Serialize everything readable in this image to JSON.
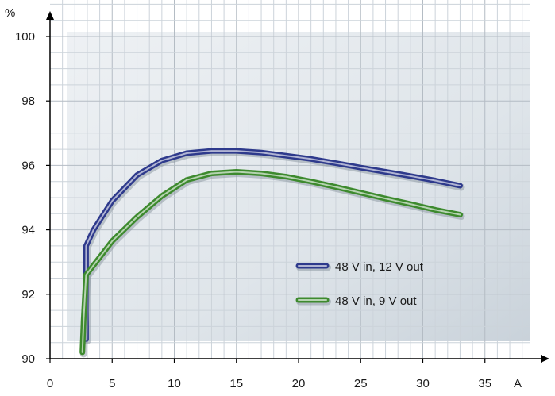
{
  "chart_data": {
    "type": "line",
    "xlabel": "A",
    "ylabel": "%",
    "xlim": [
      0,
      38.6
    ],
    "ylim": [
      90,
      101.3
    ],
    "xticks": [
      "0",
      "5",
      "10",
      "15",
      "20",
      "25",
      "30",
      "35"
    ],
    "yticks": [
      "90",
      "92",
      "94",
      "96",
      "98",
      "100"
    ],
    "grid": true,
    "legend_position": "center-right",
    "series": [
      {
        "name": "48 V in, 12 V out",
        "color": "#2e3a8c",
        "x": [
          2.9,
          2.9,
          3.5,
          5,
          7,
          9,
          11,
          13,
          15,
          17,
          19,
          21,
          23,
          25,
          27,
          29,
          31,
          33
        ],
        "y": [
          90.6,
          93.5,
          94.0,
          94.9,
          95.7,
          96.15,
          96.38,
          96.45,
          96.45,
          96.4,
          96.3,
          96.2,
          96.07,
          95.93,
          95.8,
          95.67,
          95.53,
          95.37
        ]
      },
      {
        "name": "48 V in, 9 V out",
        "color": "#3d8a2e",
        "x": [
          2.6,
          2.7,
          2.9,
          3.5,
          5,
          7,
          9,
          11,
          13,
          15,
          17,
          19,
          21,
          23,
          25,
          27,
          29,
          31,
          33
        ],
        "y": [
          90.2,
          91.2,
          92.6,
          92.9,
          93.65,
          94.4,
          95.05,
          95.55,
          95.75,
          95.8,
          95.75,
          95.65,
          95.5,
          95.33,
          95.15,
          94.97,
          94.8,
          94.62,
          94.47
        ]
      }
    ]
  }
}
